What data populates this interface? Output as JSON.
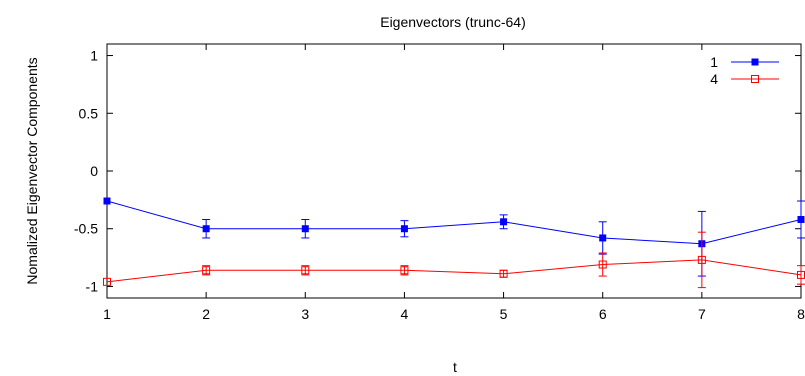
{
  "chart_data": {
    "type": "line",
    "title": "Eigenvectors (trunc-64)",
    "xlabel": "t",
    "ylabel": "Nomalized Eigenvector Components",
    "xlim": [
      1,
      8
    ],
    "ylim": [
      -1.1,
      1.1
    ],
    "xticks": [
      1,
      2,
      3,
      4,
      5,
      6,
      7,
      8
    ],
    "xtick_labels": [
      "1",
      "2",
      "3",
      "4",
      "5",
      "6",
      "7",
      "8"
    ],
    "yticks": [
      1,
      0.5,
      0,
      -0.5,
      -1
    ],
    "ytick_labels": [
      "1",
      "0.5",
      "0",
      "-0.5",
      "-1"
    ],
    "grid": false,
    "legend_position": "top-right",
    "series": [
      {
        "name": "1",
        "color": "#0000ff",
        "marker": "filled-square",
        "x": [
          1,
          2,
          3,
          4,
          5,
          6,
          7,
          8
        ],
        "y": [
          -0.26,
          -0.5,
          -0.5,
          -0.5,
          -0.44,
          -0.58,
          -0.63,
          -0.42
        ],
        "err": [
          0.0,
          0.08,
          0.08,
          0.07,
          0.06,
          0.14,
          0.28,
          0.16
        ]
      },
      {
        "name": "4",
        "color": "#ff0000",
        "marker": "open-square",
        "x": [
          1,
          2,
          3,
          4,
          5,
          6,
          7,
          8
        ],
        "y": [
          -0.96,
          -0.86,
          -0.86,
          -0.86,
          -0.89,
          -0.81,
          -0.77,
          -0.9
        ],
        "err": [
          0.0,
          0.04,
          0.04,
          0.04,
          0.03,
          0.1,
          0.24,
          0.08
        ]
      }
    ]
  }
}
